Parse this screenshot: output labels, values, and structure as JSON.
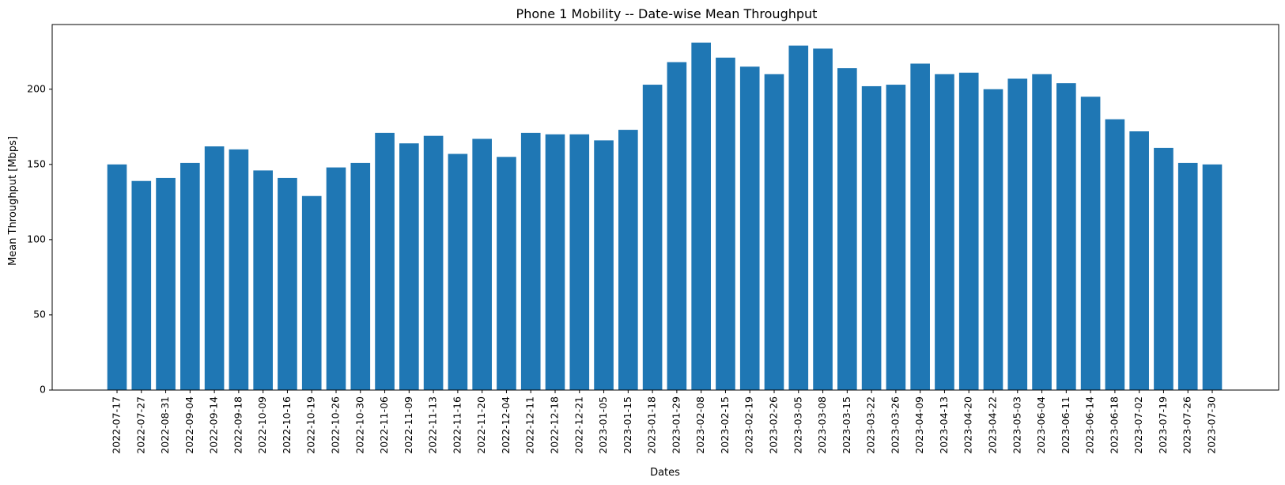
{
  "chart_data": {
    "type": "bar",
    "title": "Phone 1 Mobility -- Date-wise Mean Throughput",
    "xlabel": "Dates",
    "ylabel": "Mean Throughput [Mbps]",
    "ylim": [
      0,
      243
    ],
    "yticks": [
      0,
      50,
      100,
      150,
      200
    ],
    "grid": false,
    "bar_color": "#1f77b4",
    "categories": [
      "2022-07-17",
      "2022-07-27",
      "2022-08-31",
      "2022-09-04",
      "2022-09-14",
      "2022-09-18",
      "2022-10-09",
      "2022-10-16",
      "2022-10-19",
      "2022-10-26",
      "2022-10-30",
      "2022-11-06",
      "2022-11-09",
      "2022-11-13",
      "2022-11-16",
      "2022-11-20",
      "2022-12-04",
      "2022-12-11",
      "2022-12-18",
      "2022-12-21",
      "2023-01-05",
      "2023-01-15",
      "2023-01-18",
      "2023-01-29",
      "2023-02-08",
      "2023-02-15",
      "2023-02-19",
      "2023-02-26",
      "2023-03-05",
      "2023-03-08",
      "2023-03-15",
      "2023-03-22",
      "2023-03-26",
      "2023-04-09",
      "2023-04-13",
      "2023-04-20",
      "2023-04-22",
      "2023-05-03",
      "2023-06-04",
      "2023-06-11",
      "2023-06-14",
      "2023-06-18",
      "2023-07-02",
      "2023-07-19",
      "2023-07-26",
      "2023-07-30"
    ],
    "values": [
      150,
      139,
      141,
      151,
      162,
      160,
      146,
      141,
      129,
      148,
      151,
      171,
      164,
      169,
      157,
      167,
      155,
      171,
      170,
      170,
      166,
      173,
      203,
      218,
      231,
      221,
      215,
      210,
      229,
      227,
      214,
      202,
      203,
      217,
      210,
      211,
      200,
      207,
      210,
      204,
      195,
      180,
      172,
      161,
      151,
      150
    ]
  }
}
